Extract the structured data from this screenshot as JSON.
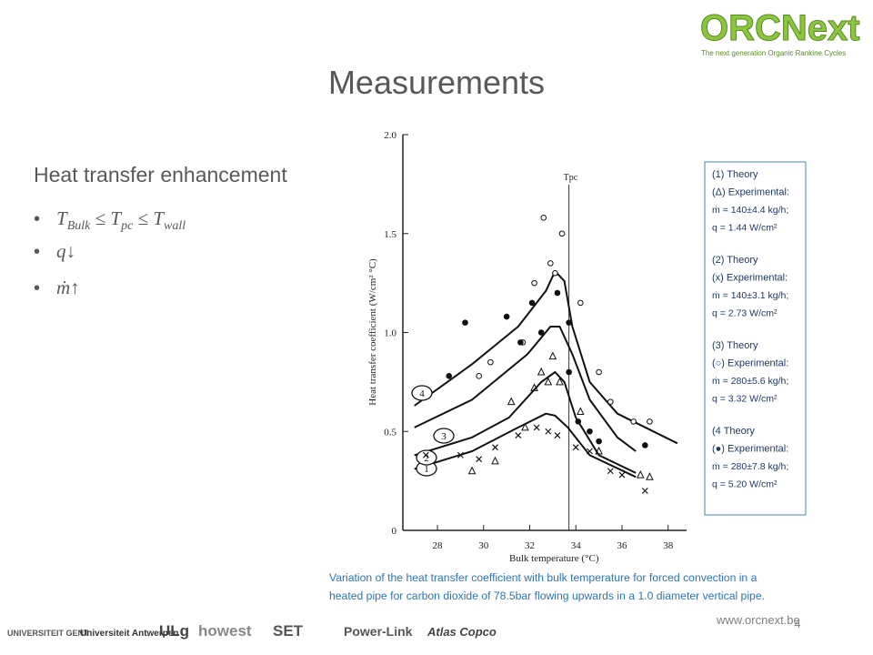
{
  "logo": {
    "name": "ORCNext",
    "tagline": "The next generation Organic Rankine Cycles"
  },
  "title": "Measurements",
  "heading": "Heat transfer enhancement",
  "bullets": [
    [
      {
        "t": "T",
        "sub": "Bulk"
      },
      {
        "t": " ≤ "
      },
      {
        "t": "T",
        "sub": "pc"
      },
      {
        "t": " ≤ "
      },
      {
        "t": "T",
        "sub": "wall"
      }
    ],
    [
      {
        "t": "q"
      },
      {
        "t": "↓"
      }
    ],
    [
      {
        "t": "ṁ"
      },
      {
        "t": "↑"
      }
    ]
  ],
  "chart_data": {
    "type": "line",
    "xlabel": "Bulk temperature (°C)",
    "ylabel": "Heat transfer coefficient (W/cm² °C)",
    "xlim": [
      26.5,
      38.8
    ],
    "ylim": [
      0,
      2.0
    ],
    "xticks": [
      28,
      30,
      32,
      34,
      36,
      38
    ],
    "yticks": [
      0,
      {
        "value": 0.5,
        "label": "0.5"
      },
      {
        "value": 1.0,
        "label": "1.0"
      },
      {
        "value": 1.5,
        "label": "1.5"
      },
      {
        "value": 2.0,
        "label": "2.0"
      }
    ],
    "vline": {
      "label": "Tpc",
      "x": 33.7
    },
    "curves": [
      {
        "name": "1",
        "x": [
          27,
          29.5,
          31.5,
          32.7,
          33.1,
          33.65,
          34.6,
          36.6
        ],
        "values": [
          0.31,
          0.4,
          0.52,
          0.59,
          0.58,
          0.52,
          0.38,
          0.27
        ]
      },
      {
        "name": "2",
        "x": [
          27,
          29.5,
          31.1,
          32.5,
          33.1,
          33.5,
          34.0,
          35.0,
          36.6
        ],
        "values": [
          0.38,
          0.47,
          0.57,
          0.75,
          0.8,
          0.75,
          0.57,
          0.38,
          0.29
        ]
      },
      {
        "name": "3",
        "x": [
          27,
          29.5,
          31.9,
          32.9,
          33.3,
          33.85,
          34.6,
          35.8,
          36.6
        ],
        "values": [
          0.52,
          0.66,
          0.89,
          1.03,
          1.03,
          0.89,
          0.66,
          0.47,
          0.4
        ]
      },
      {
        "name": "4",
        "x": [
          27,
          29.5,
          31.5,
          32.7,
          33.1,
          33.5,
          33.85,
          34.6,
          35.8,
          38.4
        ],
        "values": [
          0.63,
          0.84,
          1.03,
          1.21,
          1.31,
          1.26,
          1.03,
          0.75,
          0.59,
          0.44
        ]
      }
    ],
    "points": [
      {
        "marker": "triangle",
        "x": [
          29.5,
          30.5,
          31.2,
          31.8,
          32.2,
          32.5,
          32.8,
          33.0,
          33.3,
          34.2,
          35.0,
          36.8,
          37.2
        ],
        "values": [
          0.3,
          0.35,
          0.65,
          0.52,
          0.72,
          0.8,
          0.75,
          0.88,
          0.75,
          0.6,
          0.4,
          0.28,
          0.27
        ]
      },
      {
        "marker": "x",
        "x": [
          27.5,
          29.0,
          29.8,
          30.5,
          31.5,
          32.3,
          32.8,
          33.2,
          34.0,
          34.6,
          35.5,
          36.0,
          37.0
        ],
        "values": [
          0.38,
          0.38,
          0.36,
          0.42,
          0.48,
          0.52,
          0.5,
          0.48,
          0.42,
          0.4,
          0.3,
          0.28,
          0.2
        ]
      },
      {
        "marker": "circle-open",
        "x": [
          29.8,
          30.3,
          31.7,
          32.2,
          32.6,
          32.9,
          33.1,
          33.4,
          34.2,
          35.0,
          35.5,
          36.5,
          37.2
        ],
        "values": [
          0.78,
          0.85,
          0.95,
          1.25,
          1.58,
          1.35,
          1.3,
          1.5,
          1.15,
          0.8,
          0.65,
          0.55,
          0.55
        ]
      },
      {
        "marker": "circle-filled",
        "x": [
          28.5,
          29.2,
          31.0,
          31.6,
          32.1,
          32.5,
          33.2,
          33.7,
          33.7,
          34.1,
          34.6,
          35.0,
          37.0
        ],
        "values": [
          0.78,
          1.05,
          1.08,
          0.95,
          1.15,
          1.0,
          1.2,
          1.05,
          0.8,
          0.55,
          0.5,
          0.45,
          0.43
        ]
      }
    ]
  },
  "legend": [
    [
      "(1) Theory",
      "(Δ) Experimental:",
      "ṁ = 140±4.4 kg/h;",
      "q = 1.44 W/cm²"
    ],
    [
      "(2) Theory",
      "(x) Experimental:",
      "ṁ = 140±3.1 kg/h;",
      "q = 2.73 W/cm²"
    ],
    [
      "(3) Theory",
      "(○) Experimental:",
      "ṁ = 280±5.6 kg/h;",
      "q = 3.32 W/cm²"
    ],
    [
      "(4 Theory",
      "(●) Experimental:",
      "ṁ = 280±7.8 kg/h;",
      "q = 5.20 W/cm²"
    ]
  ],
  "caption": [
    "Variation of the heat transfer coefficient with bulk temperature for forced convection in a",
    "heated pipe for carbon dioxide of 78.5bar flowing upwards in a 1.0 diameter vertical pipe."
  ],
  "footer": {
    "partners": [
      "UNIVERSITEIT GENT",
      "Universiteit Antwerpen",
      "ULg",
      "howest",
      "SET",
      "Power-Link",
      "Atlas Copco"
    ],
    "url": "www.orcnext.be",
    "page": "4"
  }
}
